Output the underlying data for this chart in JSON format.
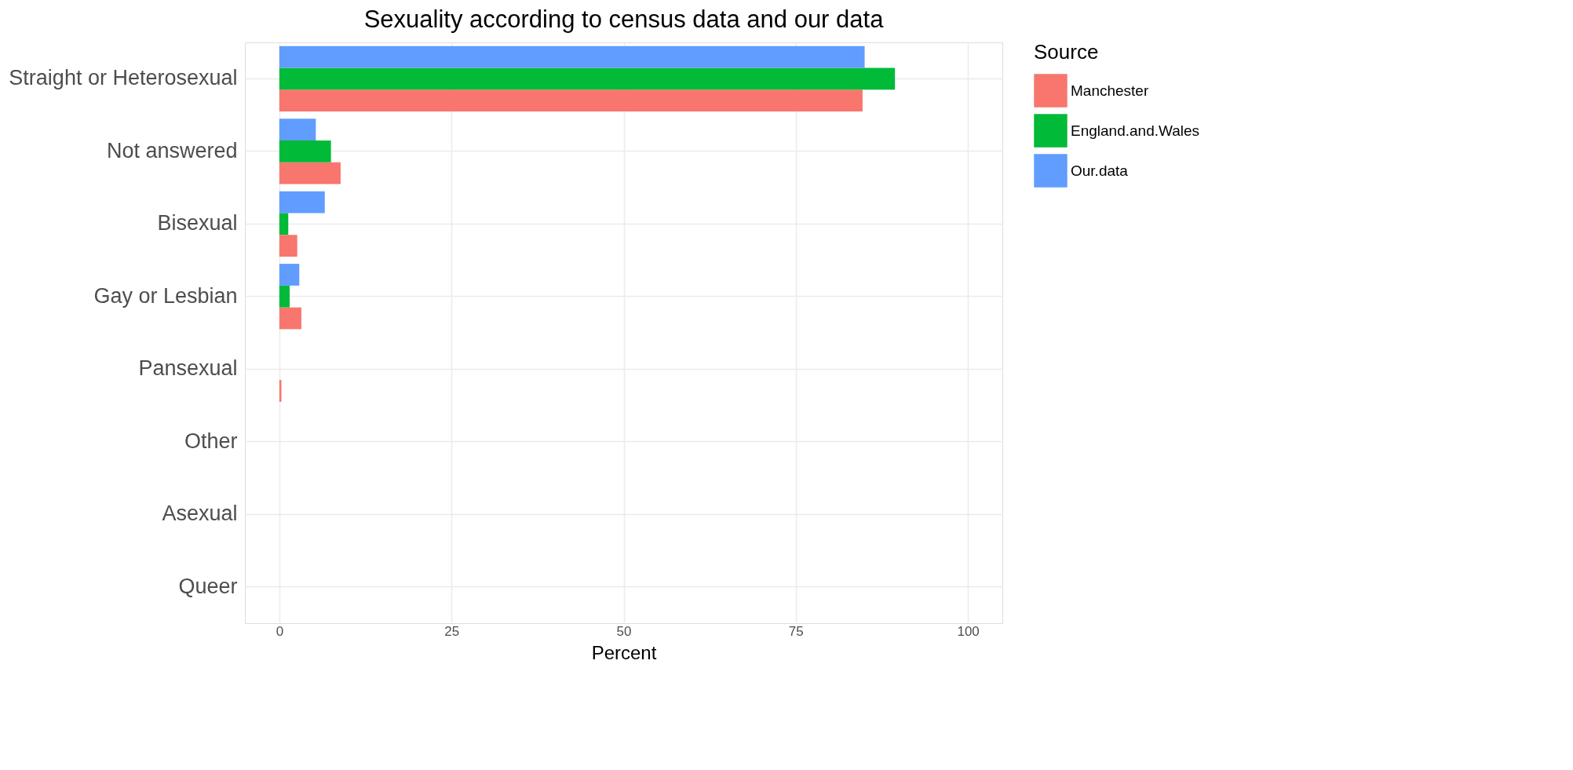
{
  "chart_data": {
    "type": "bar",
    "orientation": "horizontal",
    "title": "Sexuality according to census data and our data",
    "categories": [
      "Straight or Heterosexual",
      "Not answered",
      "Bisexual",
      "Gay or Lesbian",
      "Pansexual",
      "Other",
      "Asexual",
      "Queer"
    ],
    "series": [
      {
        "name": "Manchester",
        "color": "#f8766d",
        "values": [
          84.7,
          8.9,
          2.6,
          3.2,
          0.3,
          0,
          0,
          0
        ]
      },
      {
        "name": "England.and.Wales",
        "color": "#00ba38",
        "values": [
          89.4,
          7.5,
          1.3,
          1.5,
          0,
          0,
          0,
          0
        ]
      },
      {
        "name": "Our.data",
        "color": "#619cff",
        "values": [
          85,
          5.3,
          6.6,
          2.9,
          0,
          0,
          0,
          0
        ]
      }
    ],
    "xlabel": "Percent",
    "legend_title": "Source",
    "legend": "right",
    "xlim": [
      -5,
      105
    ],
    "xticks": [
      0,
      25,
      50,
      75,
      100
    ],
    "grid": true
  }
}
